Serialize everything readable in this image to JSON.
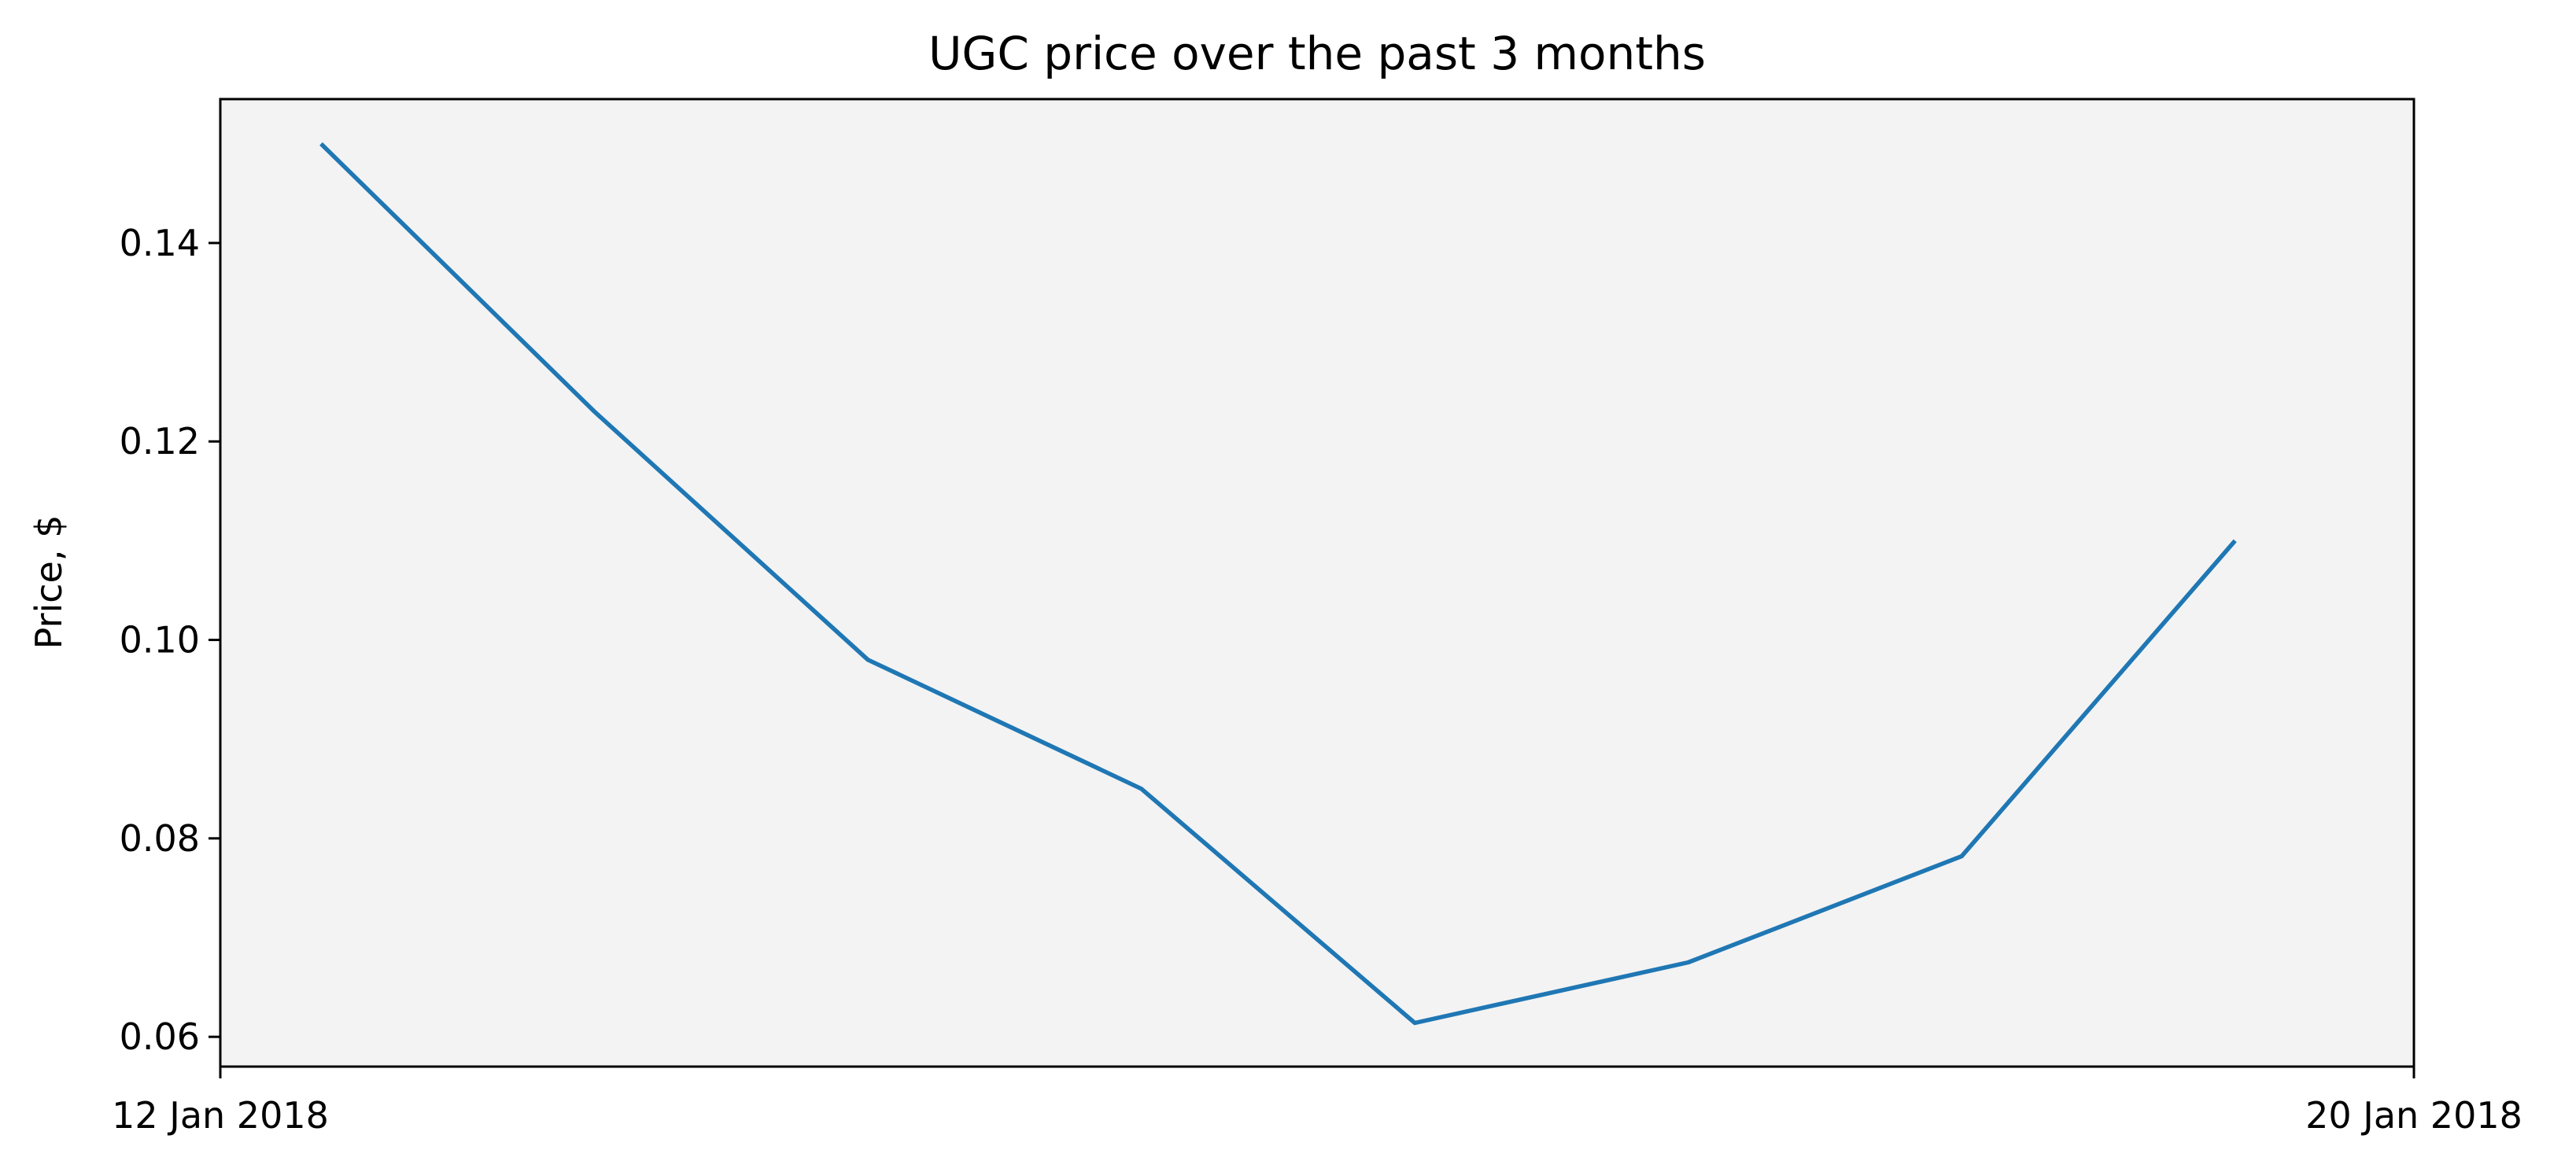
{
  "chart_data": {
    "type": "line",
    "title": "UGC price over the past 3 months",
    "xlabel": "",
    "ylabel": "Price, $",
    "x_ticks": [
      {
        "label": "12 Jan 2018",
        "value": "2018-01-12"
      },
      {
        "label": "20 Jan 2018",
        "value": "2018-01-20"
      }
    ],
    "y_ticks": [
      0.06,
      0.08,
      0.1,
      0.12,
      0.14
    ],
    "y_tick_labels": [
      "0.06",
      "0.08",
      "0.10",
      "0.12",
      "0.14"
    ],
    "xlim": [
      "2018-01-12",
      "2018-01-20"
    ],
    "ylim": [
      0.057,
      0.1545
    ],
    "grid": false,
    "series": [
      {
        "color": "#1f77b4",
        "x": [
          "2018-01-12 08:49",
          "2018-01-13 08:45",
          "2018-01-14 08:41",
          "2018-01-15 08:37",
          "2018-01-16 08:33",
          "2018-01-17 08:29",
          "2018-01-18 08:25",
          "2018-01-19 08:21"
        ],
        "values": [
          0.15,
          0.123,
          0.098,
          0.085,
          0.0614,
          0.0675,
          0.0782,
          0.11
        ]
      }
    ]
  }
}
